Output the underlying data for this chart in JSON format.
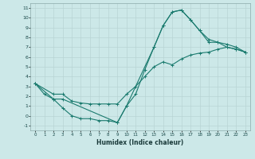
{
  "xlabel": "Humidex (Indice chaleur)",
  "bg_color": "#cce8e8",
  "grid_color": "#b8d4d4",
  "line_color": "#1a7a6e",
  "xlim": [
    -0.5,
    23.5
  ],
  "ylim": [
    -1.5,
    11.5
  ],
  "xticks": [
    0,
    1,
    2,
    3,
    4,
    5,
    6,
    7,
    8,
    9,
    10,
    11,
    12,
    13,
    14,
    15,
    16,
    17,
    18,
    19,
    20,
    21,
    22,
    23
  ],
  "yticks": [
    -1,
    0,
    1,
    2,
    3,
    4,
    5,
    6,
    7,
    8,
    9,
    10,
    11
  ],
  "line1_x": [
    0,
    1,
    2,
    3,
    4,
    5,
    6,
    7,
    8,
    9,
    10,
    11,
    12,
    13,
    14,
    15,
    16,
    17,
    18,
    19,
    20,
    21,
    22,
    23
  ],
  "line1_y": [
    3.3,
    2.2,
    1.7,
    0.8,
    0.0,
    -0.3,
    -0.3,
    -0.5,
    -0.5,
    -0.7,
    1.0,
    2.2,
    4.7,
    7.0,
    9.2,
    10.6,
    10.8,
    9.8,
    8.7,
    7.5,
    7.5,
    7.0,
    6.8,
    6.5
  ],
  "line2_x": [
    0,
    2,
    3,
    4,
    5,
    6,
    7,
    8,
    9,
    10,
    11,
    12,
    13,
    14,
    15,
    16,
    17,
    18,
    19,
    20,
    21,
    22,
    23
  ],
  "line2_y": [
    3.3,
    2.2,
    2.2,
    1.5,
    1.3,
    1.2,
    1.2,
    1.2,
    1.2,
    2.2,
    3.0,
    4.0,
    5.0,
    5.5,
    5.2,
    5.8,
    6.2,
    6.4,
    6.5,
    6.8,
    7.0,
    6.8,
    6.5
  ],
  "line3_x": [
    0,
    2,
    3,
    9,
    10,
    13,
    14,
    15,
    16,
    17,
    18,
    19,
    20,
    21,
    22,
    23
  ],
  "line3_y": [
    3.3,
    1.7,
    1.7,
    -0.7,
    1.0,
    7.0,
    9.2,
    10.6,
    10.8,
    9.8,
    8.7,
    7.8,
    7.5,
    7.3,
    7.0,
    6.5
  ]
}
